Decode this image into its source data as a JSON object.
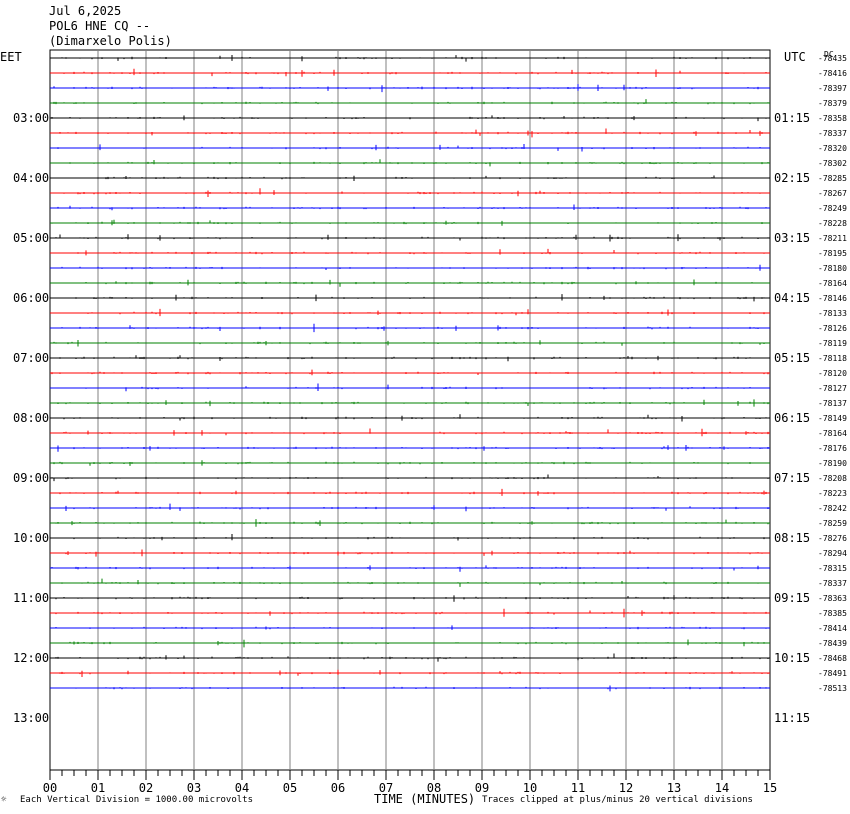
{
  "header": {
    "date": "Jul 6,2025",
    "station": "POL6 HNE CQ --",
    "location": "(Dimarxelo Polis)"
  },
  "chart_data": {
    "type": "line",
    "left_timezone": "EET",
    "right_timezone": "UTC",
    "right_header": "DC",
    "left_hour_labels": [
      "03:00",
      "04:00",
      "05:00",
      "06:00",
      "07:00",
      "08:00",
      "09:00",
      "10:00",
      "11:00",
      "12:00",
      "13:00"
    ],
    "right_hour_labels": [
      "01:15",
      "02:15",
      "03:15",
      "04:15",
      "05:15",
      "06:15",
      "07:15",
      "08:15",
      "09:15",
      "10:15",
      "11:15"
    ],
    "xlabel": "TIME (MINUTES)",
    "xlim": [
      0,
      15
    ],
    "x_tick_labels": [
      "00",
      "01",
      "02",
      "03",
      "04",
      "05",
      "06",
      "07",
      "08",
      "09",
      "10",
      "11",
      "12",
      "13",
      "14",
      "15"
    ],
    "trace_colors": [
      "#000000",
      "#ff0000",
      "#0000ff",
      "#008000"
    ],
    "dc_offsets": [
      -78435,
      -78416,
      -78397,
      -78379,
      -78358,
      -78337,
      -78320,
      -78302,
      -78285,
      -78267,
      -78249,
      -78228,
      -78211,
      -78195,
      -78180,
      -78164,
      -78146,
      -78133,
      -78126,
      -78119,
      -78118,
      -78120,
      -78127,
      -78137,
      -78149,
      -78164,
      -78176,
      -78190,
      -78208,
      -78223,
      -78242,
      -78259,
      -78276,
      -78294,
      -78315,
      -78337,
      -78363,
      -78385,
      -78414,
      -78439,
      -78468,
      -78491,
      -78513
    ],
    "scale_note": "Each Vertical Division = 1000.00 microvolts",
    "clip_note": "Traces clipped at plus/minus 20 vertical divisions",
    "corner_mark": "☼"
  }
}
